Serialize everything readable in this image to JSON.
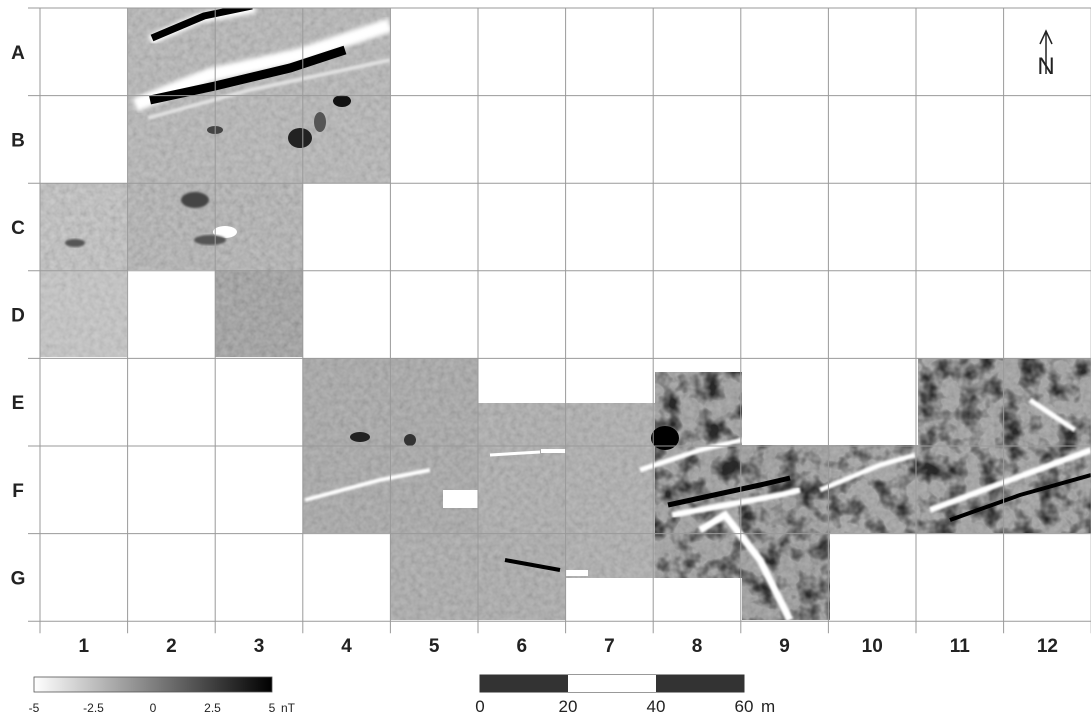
{
  "rows": [
    "A",
    "B",
    "C",
    "D",
    "E",
    "F",
    "G"
  ],
  "columns": [
    "1",
    "2",
    "3",
    "4",
    "5",
    "6",
    "7",
    "8",
    "9",
    "10",
    "11",
    "12"
  ],
  "colorbar": {
    "ticks": [
      "-5",
      "-2.5",
      "0",
      "2.5",
      "5"
    ],
    "unit": "nT",
    "colors": [
      "#ffffff",
      "#000000"
    ]
  },
  "scalebar": {
    "ticks": [
      "0",
      "20",
      "40",
      "60"
    ],
    "unit": "m",
    "colors": [
      "#333333",
      "#ffffff"
    ]
  },
  "north_arrow": {
    "label": "N"
  },
  "colors": {
    "grid": "#9a9a9a",
    "survey_mid": "#a6a6a6",
    "anomaly_dark": "#000000",
    "anomaly_light": "#ffffff"
  }
}
